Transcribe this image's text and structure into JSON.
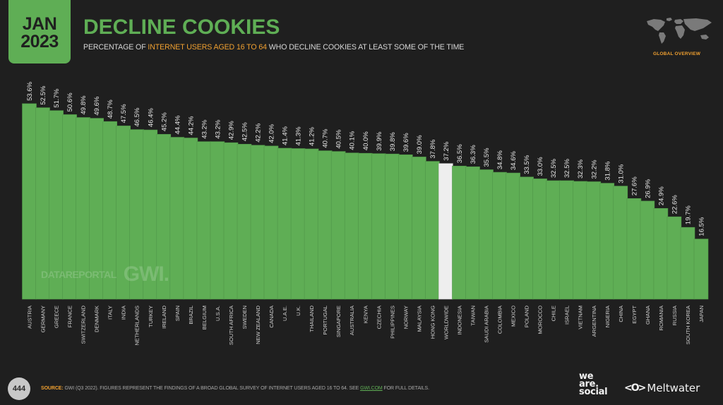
{
  "header": {
    "date_month": "JAN",
    "date_year": "2023",
    "title": "DECLINE COOKIES",
    "subtitle_pre": "PERCENTAGE OF ",
    "subtitle_highlight": "INTERNET USERS AGED 16 TO 64",
    "subtitle_post": " WHO DECLINE COOKIES AT LEAST SOME OF THE TIME",
    "section_label": "GLOBAL OVERVIEW"
  },
  "watermark": {
    "datareportal": "DATAREPORTAL",
    "gwi": "GWI."
  },
  "footer": {
    "page_number": "444",
    "source_label": "SOURCE:",
    "source_text": " GWI (Q3 2022). FIGURES REPRESENT THE FINDINGS OF A BROAD GLOBAL SURVEY OF INTERNET USERS AGED 16 TO 64. SEE ",
    "source_link": "GWI.COM",
    "source_tail": " FOR FULL DETAILS.",
    "brand_1_line1": "we",
    "brand_1_line2": "are.",
    "brand_1_line3": "social",
    "brand_2_icon": "<O>",
    "brand_2": "Meltwater"
  },
  "colors": {
    "background": "#1f1f1f",
    "bar": "#5fae55",
    "highlight_bar": "#eeeeee",
    "accent": "#f0a030",
    "text": "#d6d6d6"
  },
  "chart_data": {
    "type": "bar",
    "title": "DECLINE COOKIES",
    "subtitle": "PERCENTAGE OF INTERNET USERS AGED 16 TO 64 WHO DECLINE COOKIES AT LEAST SOME OF THE TIME",
    "xlabel": "",
    "ylabel": "",
    "ylim": [
      0,
      55
    ],
    "unit": "%",
    "grid": false,
    "highlight_category": "WORLDWIDE",
    "categories": [
      "AUSTRIA",
      "GERMANY",
      "GREECE",
      "FRANCE",
      "SWITZERLAND",
      "DENMARK",
      "ITALY",
      "INDIA",
      "NETHERLANDS",
      "TURKEY",
      "IRELAND",
      "SPAIN",
      "BRAZIL",
      "BELGIUM",
      "U.S.A.",
      "SOUTH AFRICA",
      "SWEDEN",
      "NEW ZEALAND",
      "CANADA",
      "U.A.E.",
      "U.K.",
      "THAILAND",
      "PORTUGAL",
      "SINGAPORE",
      "AUSTRALIA",
      "KENYA",
      "CZECHIA",
      "PHILIPPINES",
      "NORWAY",
      "MALAYSIA",
      "HONG KONG",
      "WORLDWIDE",
      "INDONESIA",
      "TAIWAN",
      "SAUDI ARABIA",
      "COLOMBIA",
      "MEXICO",
      "POLAND",
      "MOROCCO",
      "CHILE",
      "ISRAEL",
      "VIETNAM",
      "ARGENTINA",
      "NIGERIA",
      "CHINA",
      "EGYPT",
      "GHANA",
      "ROMANIA",
      "RUSSIA",
      "SOUTH KOREA",
      "JAPAN"
    ],
    "values": [
      53.6,
      52.5,
      51.7,
      50.6,
      49.8,
      49.6,
      48.7,
      47.5,
      46.5,
      46.4,
      45.2,
      44.4,
      44.2,
      43.2,
      43.2,
      42.9,
      42.5,
      42.2,
      42.0,
      41.4,
      41.3,
      41.2,
      40.7,
      40.5,
      40.1,
      40.0,
      39.9,
      39.8,
      39.6,
      39.0,
      37.8,
      37.2,
      36.5,
      36.3,
      35.5,
      34.8,
      34.6,
      33.5,
      33.0,
      32.5,
      32.5,
      32.3,
      32.2,
      31.8,
      31.0,
      27.6,
      26.9,
      24.9,
      22.6,
      19.7,
      16.5
    ],
    "value_labels": [
      "53.6%",
      "52.5%",
      "51.7%",
      "50.6%",
      "49.8%",
      "49.6%",
      "48.7%",
      "47.5%",
      "46.5%",
      "46.4%",
      "45.2%",
      "44.4%",
      "44.2%",
      "43.2%",
      "43.2%",
      "42.9%",
      "42.5%",
      "42.2%",
      "42.0%",
      "41.4%",
      "41.3%",
      "41.2%",
      "40.7%",
      "40.5%",
      "40.1%",
      "40.0%",
      "39.9%",
      "39.8%",
      "39.6%",
      "39.0%",
      "37.8%",
      "37.2%",
      "36.5%",
      "36.3%",
      "35.5%",
      "34.8%",
      "34.6%",
      "33.5%",
      "33.0%",
      "32.5%",
      "32.5%",
      "32.3%",
      "32.2%",
      "31.8%",
      "31.0%",
      "27.6%",
      "26.9%",
      "24.9%",
      "22.6%",
      "19.7%",
      "16.5%"
    ]
  }
}
